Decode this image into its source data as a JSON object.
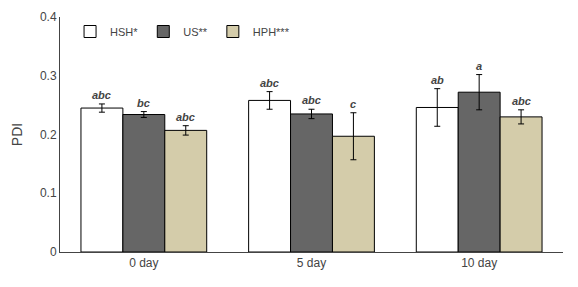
{
  "chart_data": {
    "type": "bar",
    "ylabel": "PDI",
    "categories": [
      "0 day",
      "5 day",
      "10 day"
    ],
    "series": [
      {
        "name": "HSH*",
        "color": "#FFFFFF",
        "values": [
          0.245,
          0.258,
          0.246
        ],
        "errors": [
          0.007,
          0.015,
          0.032
        ],
        "sig_labels": [
          "abc",
          "abc",
          "ab"
        ]
      },
      {
        "name": "US**",
        "color": "#666666",
        "values": [
          0.234,
          0.235,
          0.272
        ],
        "errors": [
          0.005,
          0.008,
          0.03
        ],
        "sig_labels": [
          "bc",
          "abc",
          "a"
        ]
      },
      {
        "name": "HPH***",
        "color": "#D4CCAA",
        "values": [
          0.207,
          0.197,
          0.23
        ],
        "errors": [
          0.008,
          0.04,
          0.012
        ],
        "sig_labels": [
          "abc",
          "c",
          "abc"
        ]
      }
    ],
    "ylim": [
      0,
      0.4
    ],
    "yticks": [
      0,
      0.1,
      0.2,
      0.3,
      0.4
    ],
    "grid": false,
    "legend": "upper left"
  }
}
